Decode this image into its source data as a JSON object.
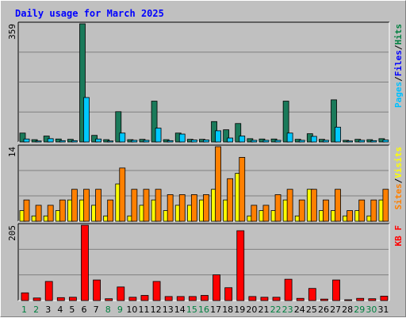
{
  "chart_data": {
    "type": "bar",
    "title": "Daily usage for March 2025",
    "categories": [
      "1",
      "2",
      "3",
      "4",
      "5",
      "6",
      "7",
      "8",
      "9",
      "10",
      "11",
      "12",
      "13",
      "14",
      "15",
      "16",
      "17",
      "18",
      "19",
      "20",
      "21",
      "22",
      "23",
      "24",
      "25",
      "26",
      "27",
      "28",
      "29",
      "30",
      "31"
    ],
    "weekend_days": [
      "1",
      "2",
      "8",
      "9",
      "15",
      "16",
      "22",
      "23",
      "29",
      "30"
    ],
    "panels": [
      {
        "name": "hits-files-pages",
        "ymax_label": "359",
        "ylim": [
          0,
          359
        ],
        "right_label": [
          {
            "text": "Pages",
            "color": "#00c0ff"
          },
          {
            "text": "/",
            "color": "#000000"
          },
          {
            "text": "Files",
            "color": "#0000ff"
          },
          {
            "text": "/",
            "color": "#000000"
          },
          {
            "text": "Hits",
            "color": "#008040"
          }
        ],
        "series": [
          {
            "name": "Hits",
            "color": "#1a7a5a",
            "values": [
              27,
              7,
              18,
              9,
              8,
              359,
              20,
              7,
              92,
              7,
              8,
              124,
              7,
              27,
              8,
              8,
              62,
              37,
              56,
              10,
              9,
              9,
              124,
              8,
              25,
              8,
              128,
              5,
              8,
              7,
              10
            ]
          },
          {
            "name": "Files",
            "color": "#00c8ff",
            "values": [
              9,
              3,
              10,
              4,
              4,
              135,
              9,
              3,
              27,
              5,
              5,
              42,
              4,
              24,
              6,
              6,
              34,
              12,
              18,
              5,
              5,
              5,
              27,
              5,
              17,
              5,
              45,
              3,
              5,
              4,
              6
            ]
          }
        ]
      },
      {
        "name": "sites-visits",
        "ymax_label": "14",
        "ylim": [
          0,
          14
        ],
        "right_label": [
          {
            "text": "Sites",
            "color": "#ff8000"
          },
          {
            "text": "/",
            "color": "#000000"
          },
          {
            "text": "Visits",
            "color": "#ffff00"
          }
        ],
        "series": [
          {
            "name": "Visits",
            "color": "#ffff00",
            "values": [
              2,
              1,
              1,
              2,
              4,
              4,
              3,
              1,
              7,
              1,
              3,
              4,
              2,
              3,
              3,
              4,
              6,
              4,
              9,
              1,
              2,
              2,
              4,
              1,
              6,
              2,
              2,
              1,
              2,
              1,
              4
            ]
          },
          {
            "name": "Sites",
            "color": "#ff8000",
            "values": [
              4,
              3,
              3,
              4,
              6,
              6,
              6,
              4,
              10,
              6,
              6,
              6,
              5,
              5,
              5,
              5,
              14,
              8,
              12,
              3,
              3,
              5,
              6,
              4,
              6,
              4,
              6,
              2,
              4,
              4,
              6
            ]
          }
        ]
      },
      {
        "name": "kbf",
        "ymax_label": "205",
        "ylim": [
          0,
          205
        ],
        "right_label": [
          {
            "text": "KB F",
            "color": "#ff0000"
          }
        ],
        "series": [
          {
            "name": "KB F",
            "color": "#ff0000",
            "values": [
              21,
              7,
              52,
              8,
              9,
              205,
              56,
              5,
              37,
              9,
              14,
              52,
              11,
              11,
              11,
              14,
              70,
              35,
              190,
              11,
              9,
              9,
              58,
              6,
              33,
              4,
              56,
              2,
              6,
              5,
              12
            ]
          }
        ]
      }
    ]
  }
}
